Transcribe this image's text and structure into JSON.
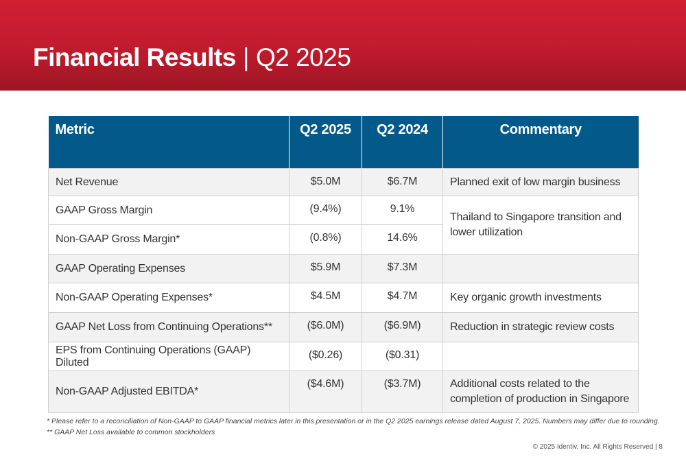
{
  "header": {
    "title_bold": "Financial Results",
    "separator": "|",
    "period": "Q2 2025"
  },
  "table": {
    "columns": [
      "Metric",
      "Q2 2025",
      "Q2 2024",
      "Commentary"
    ],
    "rows": [
      {
        "metric": "Net Revenue",
        "q2_2025": "$5.0M",
        "q2_2024": "$6.7M",
        "commentary": "Planned exit of low margin business"
      },
      {
        "metric": "GAAP Gross Margin",
        "q2_2025": "(9.4%)",
        "q2_2024": "9.1%",
        "commentary": "Thailand to Singapore transition and lower utilization"
      },
      {
        "metric": "Non-GAAP Gross Margin*",
        "q2_2025": "(0.8%)",
        "q2_2024": "14.6%",
        "commentary": ""
      },
      {
        "metric": "GAAP Operating Expenses",
        "q2_2025": "$5.9M",
        "q2_2024": "$7.3M",
        "commentary": ""
      },
      {
        "metric": "Non-GAAP Operating Expenses*",
        "q2_2025": "$4.5M",
        "q2_2024": "$4.7M",
        "commentary": "Key organic growth investments"
      },
      {
        "metric": "GAAP Net Loss from Continuing Operations**",
        "q2_2025": "($6.0M)",
        "q2_2024": "($6.9M)",
        "commentary": "Reduction in strategic review costs"
      },
      {
        "metric": "EPS from Continuing Operations (GAAP) Diluted",
        "q2_2025": "($0.26)",
        "q2_2024": "($0.31)",
        "commentary": ""
      },
      {
        "metric": "Non-GAAP Adjusted EBITDA*",
        "q2_2025": "($4.6M)",
        "q2_2024": "($3.7M)",
        "commentary": "Additional costs related to the completion of production in Singapore"
      }
    ]
  },
  "footnotes": [
    "* Please refer to a reconciliation of Non-GAAP to GAAP financial metrics later in this presentation or in the Q2 2025 earnings release dated August 7, 2025. Numbers may differ due to rounding.",
    "** GAAP Net Loss available to common stockholders"
  ],
  "footer": {
    "copyright": "© 2025 Identiv, Inc. All Rights Reserved | 8"
  },
  "colors": {
    "banner": "#c01b2d",
    "table_header": "#035a8a",
    "row_shade": "#f2f2f2"
  }
}
